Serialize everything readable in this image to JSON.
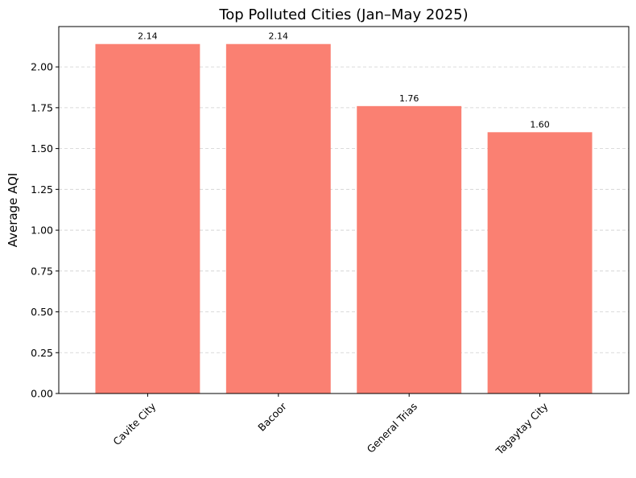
{
  "chart_data": {
    "type": "bar",
    "title": "Top Polluted Cities (Jan–May 2025)",
    "xlabel": "",
    "ylabel": "Average AQI",
    "categories": [
      "Cavite City",
      "Bacoor",
      "General Trias",
      "Tagaytay City"
    ],
    "values": [
      2.14,
      2.14,
      1.76,
      1.6
    ],
    "value_labels": [
      "2.14",
      "2.14",
      "1.76",
      "1.60"
    ],
    "ylim": [
      0,
      2.247
    ],
    "yticks": [
      0.0,
      0.25,
      0.5,
      0.75,
      1.0,
      1.25,
      1.5,
      1.75,
      2.0
    ],
    "ytick_labels": [
      "0.00",
      "0.25",
      "0.50",
      "0.75",
      "1.00",
      "1.25",
      "1.50",
      "1.75",
      "2.00"
    ],
    "grid": "y-dashed",
    "bar_color": "#fa8072",
    "xtick_rotation": 45
  }
}
